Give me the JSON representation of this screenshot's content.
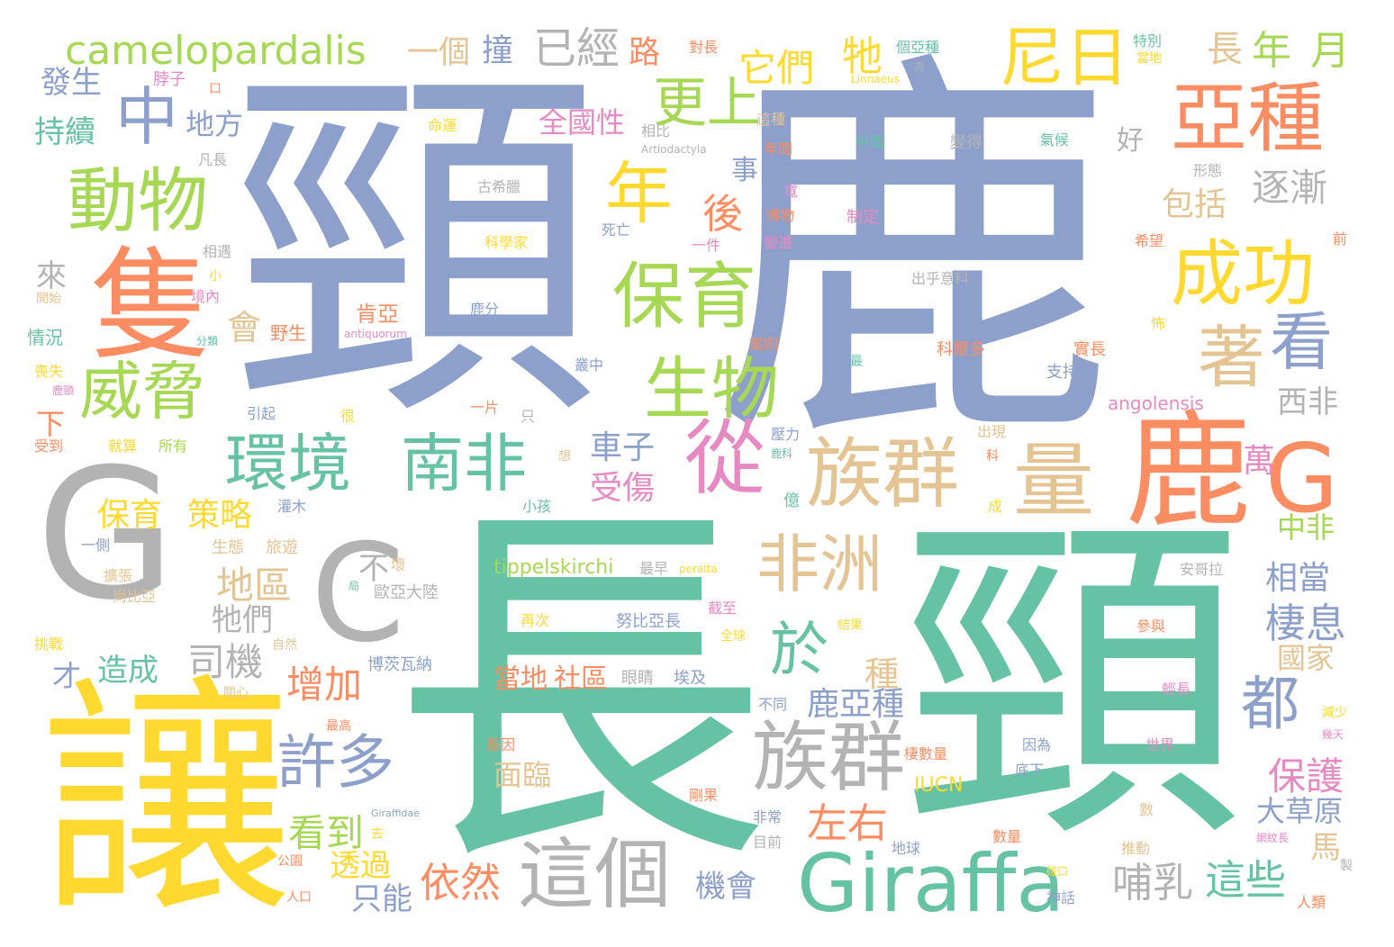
{
  "palette": {
    "teal": "#66c2a5",
    "orange": "#fc8d62",
    "blue": "#8da0cb",
    "pink": "#e78ac3",
    "green": "#a6d854",
    "yellow": "#ffd92f",
    "tan": "#e5c494",
    "gray": "#b3b3b3"
  },
  "words": [
    {
      "t": "頸",
      "c": "blue"
    },
    {
      "t": "鹿",
      "c": "blue"
    },
    {
      "t": "長",
      "c": "teal"
    },
    {
      "t": "頸",
      "c": "teal"
    },
    {
      "t": "G",
      "c": "gray"
    },
    {
      "t": "C",
      "c": "gray"
    },
    {
      "t": "讓",
      "c": "yellow"
    },
    {
      "t": "鹿",
      "c": "orange"
    },
    {
      "t": "G",
      "c": "orange"
    },
    {
      "t": "隻",
      "c": "orange"
    },
    {
      "t": "Giraffa",
      "c": "teal"
    },
    {
      "t": "camelopardalis",
      "c": "green"
    },
    {
      "t": "族群",
      "c": "tan"
    },
    {
      "t": "族群",
      "c": "gray"
    },
    {
      "t": "量",
      "c": "tan"
    },
    {
      "t": "這個",
      "c": "gray"
    },
    {
      "t": "亞種",
      "c": "orange"
    },
    {
      "t": "從",
      "c": "pink"
    },
    {
      "t": "成功",
      "c": "yellow"
    },
    {
      "t": "動物",
      "c": "green"
    },
    {
      "t": "保育",
      "c": "green"
    },
    {
      "t": "生物",
      "c": "green"
    },
    {
      "t": "威脅",
      "c": "green"
    },
    {
      "t": "環境",
      "c": "teal"
    },
    {
      "t": "南非",
      "c": "teal"
    },
    {
      "t": "非洲",
      "c": "tan"
    },
    {
      "t": "年",
      "c": "yellow"
    },
    {
      "t": "尼日",
      "c": "yellow"
    },
    {
      "t": "著",
      "c": "tan"
    },
    {
      "t": "看",
      "c": "blue"
    },
    {
      "t": "中",
      "c": "blue"
    },
    {
      "t": "許多",
      "c": "blue"
    },
    {
      "t": "都",
      "c": "blue"
    },
    {
      "t": "於",
      "c": "teal"
    },
    {
      "t": "更上",
      "c": "green"
    },
    {
      "t": "已經",
      "c": "gray"
    },
    {
      "t": "它們",
      "c": "yellow"
    },
    {
      "t": "牠",
      "c": "yellow"
    },
    {
      "t": "長",
      "c": "tan"
    },
    {
      "t": "年",
      "c": "green"
    },
    {
      "t": "月",
      "c": "green"
    },
    {
      "t": "逐漸",
      "c": "gray"
    },
    {
      "t": "棲息",
      "c": "blue"
    },
    {
      "t": "相當",
      "c": "blue"
    },
    {
      "t": "保護",
      "c": "pink"
    },
    {
      "t": "這些",
      "c": "teal"
    },
    {
      "t": "哺乳",
      "c": "gray"
    },
    {
      "t": "依然",
      "c": "orange"
    },
    {
      "t": "左右",
      "c": "orange"
    },
    {
      "t": "看到",
      "c": "green"
    },
    {
      "t": "增加",
      "c": "orange"
    },
    {
      "t": "司機",
      "c": "gray"
    },
    {
      "t": "地區",
      "c": "tan"
    },
    {
      "t": "保育",
      "c": "yellow"
    },
    {
      "t": "策略",
      "c": "yellow"
    },
    {
      "t": "造成",
      "c": "teal"
    },
    {
      "t": "鹿亞種",
      "c": "blue"
    },
    {
      "t": "車子",
      "c": "blue"
    },
    {
      "t": "受傷",
      "c": "pink"
    },
    {
      "t": "後",
      "c": "orange"
    },
    {
      "t": "事",
      "c": "blue"
    },
    {
      "t": "包括",
      "c": "tan"
    },
    {
      "t": "好",
      "c": "gray"
    },
    {
      "t": "西非",
      "c": "gray"
    },
    {
      "t": "萬",
      "c": "pink"
    },
    {
      "t": "中非",
      "c": "green"
    },
    {
      "t": "國家",
      "c": "tan"
    },
    {
      "t": "大草原",
      "c": "blue"
    },
    {
      "t": "馬",
      "c": "tan"
    },
    {
      "t": "機會",
      "c": "blue"
    },
    {
      "t": "透過",
      "c": "yellow"
    },
    {
      "t": "只能",
      "c": "blue"
    },
    {
      "t": "面臨",
      "c": "tan"
    },
    {
      "t": "當地",
      "c": "orange"
    },
    {
      "t": "社區",
      "c": "orange"
    },
    {
      "t": "會",
      "c": "tan"
    },
    {
      "t": "種",
      "c": "tan"
    },
    {
      "t": "牠們",
      "c": "gray"
    },
    {
      "t": "發生",
      "c": "blue"
    },
    {
      "t": "持續",
      "c": "teal"
    },
    {
      "t": "地方",
      "c": "blue"
    },
    {
      "t": "全國性",
      "c": "pink"
    },
    {
      "t": "一個",
      "c": "tan"
    },
    {
      "t": "撞",
      "c": "blue"
    },
    {
      "t": "路",
      "c": "orange"
    },
    {
      "t": "來",
      "c": "gray"
    },
    {
      "t": "下",
      "c": "orange"
    },
    {
      "t": "才",
      "c": "blue"
    },
    {
      "t": "不",
      "c": "gray"
    },
    {
      "t": "tippelskirchi",
      "c": "green"
    },
    {
      "t": "angolensis",
      "c": "pink"
    },
    {
      "t": "IUCN",
      "c": "yellow"
    },
    {
      "t": "肯亞",
      "c": "orange"
    },
    {
      "t": "野生",
      "c": "orange"
    },
    {
      "t": "情況",
      "c": "teal"
    },
    {
      "t": "脖子",
      "c": "pink"
    },
    {
      "t": "口",
      "c": "orange"
    },
    {
      "t": "凡長",
      "c": "gray"
    },
    {
      "t": "對長",
      "c": "orange"
    },
    {
      "t": "命運",
      "c": "yellow"
    },
    {
      "t": "相比",
      "c": "gray"
    },
    {
      "t": "Artiodactyla",
      "c": "gray"
    },
    {
      "t": "古希臘",
      "c": "gray"
    },
    {
      "t": "科學家",
      "c": "yellow"
    },
    {
      "t": "鹿分",
      "c": "blue"
    },
    {
      "t": "antiquorum",
      "c": "pink"
    },
    {
      "t": "個亞種",
      "c": "teal"
    },
    {
      "t": "為",
      "c": "gray"
    },
    {
      "t": "Linnaeus",
      "c": "yellow"
    },
    {
      "t": "特別",
      "c": "teal"
    },
    {
      "t": "當地",
      "c": "yellow"
    },
    {
      "t": "這種",
      "c": "tan"
    },
    {
      "t": "年間",
      "c": "orange"
    },
    {
      "t": "中國",
      "c": "teal"
    },
    {
      "t": "變得",
      "c": "gray"
    },
    {
      "t": "氣候",
      "c": "teal"
    },
    {
      "t": "形態",
      "c": "gray"
    },
    {
      "t": "寬",
      "c": "pink"
    },
    {
      "t": "博物",
      "c": "orange"
    },
    {
      "t": "制定",
      "c": "pink"
    },
    {
      "t": "希望",
      "c": "orange"
    },
    {
      "t": "前",
      "c": "orange"
    },
    {
      "t": "相遇",
      "c": "gray"
    },
    {
      "t": "死亡",
      "c": "blue"
    },
    {
      "t": "一件",
      "c": "pink"
    },
    {
      "t": "變遷",
      "c": "pink"
    },
    {
      "t": "出乎意料",
      "c": "gray"
    },
    {
      "t": "小",
      "c": "yellow"
    },
    {
      "t": "境內",
      "c": "pink"
    },
    {
      "t": "開始",
      "c": "tan"
    },
    {
      "t": "分類",
      "c": "teal"
    },
    {
      "t": "怖",
      "c": "yellow"
    },
    {
      "t": "案例",
      "c": "orange"
    },
    {
      "t": "科爾多",
      "c": "orange"
    },
    {
      "t": "實長",
      "c": "orange"
    },
    {
      "t": "最",
      "c": "teal"
    },
    {
      "t": "支持",
      "c": "blue"
    },
    {
      "t": "叢中",
      "c": "blue"
    },
    {
      "t": "喪失",
      "c": "yellow"
    },
    {
      "t": "鹿頸",
      "c": "pink"
    },
    {
      "t": "一片",
      "c": "orange"
    },
    {
      "t": "只",
      "c": "gray"
    },
    {
      "t": "引起",
      "c": "blue"
    },
    {
      "t": "很",
      "c": "yellow"
    },
    {
      "t": "受到",
      "c": "orange"
    },
    {
      "t": "就算",
      "c": "yellow"
    },
    {
      "t": "所有",
      "c": "green"
    },
    {
      "t": "想",
      "c": "tan"
    },
    {
      "t": "壓力",
      "c": "blue"
    },
    {
      "t": "鹿科",
      "c": "teal"
    },
    {
      "t": "出現",
      "c": "tan"
    },
    {
      "t": "科",
      "c": "orange"
    },
    {
      "t": "成",
      "c": "yellow"
    },
    {
      "t": "億",
      "c": "teal"
    },
    {
      "t": "灌木",
      "c": "blue"
    },
    {
      "t": "小孩",
      "c": "teal"
    },
    {
      "t": "生態",
      "c": "tan"
    },
    {
      "t": "旅遊",
      "c": "tan"
    },
    {
      "t": "一側",
      "c": "blue"
    },
    {
      "t": "擴張",
      "c": "tan"
    },
    {
      "t": "尚比亞",
      "c": "tan"
    },
    {
      "t": "壞",
      "c": "tan"
    },
    {
      "t": "局",
      "c": "teal"
    },
    {
      "t": "歐亞大陸",
      "c": "gray"
    },
    {
      "t": "最早",
      "c": "gray"
    },
    {
      "t": "peralta",
      "c": "yellow"
    },
    {
      "t": "安哥拉",
      "c": "gray"
    },
    {
      "t": "再次",
      "c": "yellow"
    },
    {
      "t": "努比亞長",
      "c": "blue"
    },
    {
      "t": "截至",
      "c": "pink"
    },
    {
      "t": "結果",
      "c": "yellow"
    },
    {
      "t": "參與",
      "c": "orange"
    },
    {
      "t": "全球",
      "c": "yellow"
    },
    {
      "t": "挑戰",
      "c": "yellow"
    },
    {
      "t": "自然",
      "c": "tan"
    },
    {
      "t": "博茨瓦納",
      "c": "blue"
    },
    {
      "t": "關心",
      "c": "tan"
    },
    {
      "t": "眼睛",
      "c": "gray"
    },
    {
      "t": "埃及",
      "c": "blue"
    },
    {
      "t": "不同",
      "c": "blue"
    },
    {
      "t": "輕長",
      "c": "pink"
    },
    {
      "t": "最高",
      "c": "orange"
    },
    {
      "t": "減少",
      "c": "yellow"
    },
    {
      "t": "幾天",
      "c": "pink"
    },
    {
      "t": "基因",
      "c": "orange"
    },
    {
      "t": "棲數量",
      "c": "orange"
    },
    {
      "t": "因為",
      "c": "blue"
    },
    {
      "t": "世界",
      "c": "pink"
    },
    {
      "t": "底下",
      "c": "blue"
    },
    {
      "t": "剛果",
      "c": "orange"
    },
    {
      "t": "Giraffidae",
      "c": "blue"
    },
    {
      "t": "去",
      "c": "yellow"
    },
    {
      "t": "非常",
      "c": "blue"
    },
    {
      "t": "數",
      "c": "tan"
    },
    {
      "t": "網紋長",
      "c": "pink"
    },
    {
      "t": "公園",
      "c": "orange"
    },
    {
      "t": "目前",
      "c": "gray"
    },
    {
      "t": "地球",
      "c": "blue"
    },
    {
      "t": "數量",
      "c": "orange"
    },
    {
      "t": "推動",
      "c": "tan"
    },
    {
      "t": "製",
      "c": "gray"
    },
    {
      "t": "人口",
      "c": "orange"
    },
    {
      "t": "神話",
      "c": "blue"
    },
    {
      "t": "人類",
      "c": "orange"
    },
    {
      "t": "碰口",
      "c": "yellow"
    }
  ]
}
